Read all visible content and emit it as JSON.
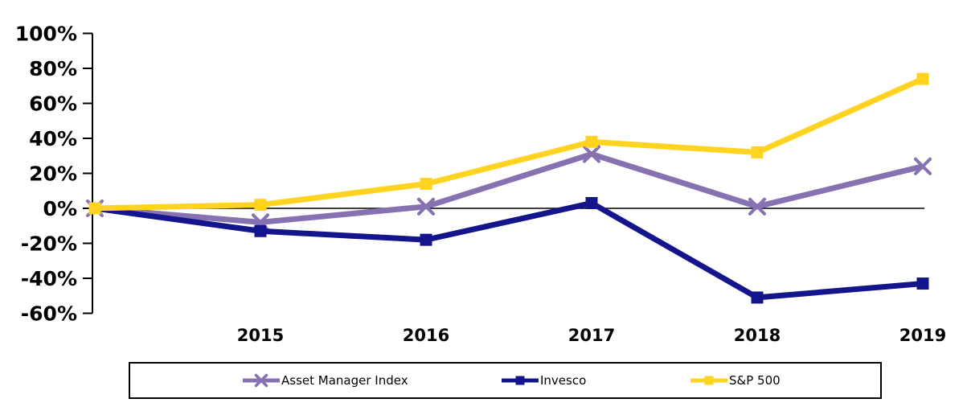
{
  "chart_data": {
    "type": "line",
    "categories": [
      "",
      "2015",
      "2016",
      "2017",
      "2018",
      "2019"
    ],
    "series": [
      {
        "name": "Asset Manager Index",
        "color": "#8672B0",
        "marker": "x",
        "values": [
          0,
          -8,
          1,
          31,
          1,
          24
        ]
      },
      {
        "name": "Invesco",
        "color": "#14148C",
        "marker": "square",
        "values": [
          0,
          -13,
          -18,
          3,
          -51,
          -43
        ]
      },
      {
        "name": "S&P 500",
        "color": "#FFD320",
        "marker": "square",
        "values": [
          0,
          2,
          14,
          38,
          32,
          74
        ]
      }
    ],
    "yticks": [
      {
        "label": "100%",
        "value": 100
      },
      {
        "label": "80%",
        "value": 80
      },
      {
        "label": "60%",
        "value": 60
      },
      {
        "label": "40%",
        "value": 40
      },
      {
        "label": "20%",
        "value": 20
      },
      {
        "label": "0%",
        "value": 0
      },
      {
        "label": "-20%",
        "value": -20
      },
      {
        "label": "-40%",
        "value": -40
      },
      {
        "label": "-60%",
        "value": -60
      }
    ],
    "ylim": [
      -60,
      100
    ],
    "unit": "%",
    "grid": false,
    "zero_baseline": true,
    "legend_position": "bottom",
    "axis_color": "#000000",
    "background_color": "#FFFFFF"
  }
}
